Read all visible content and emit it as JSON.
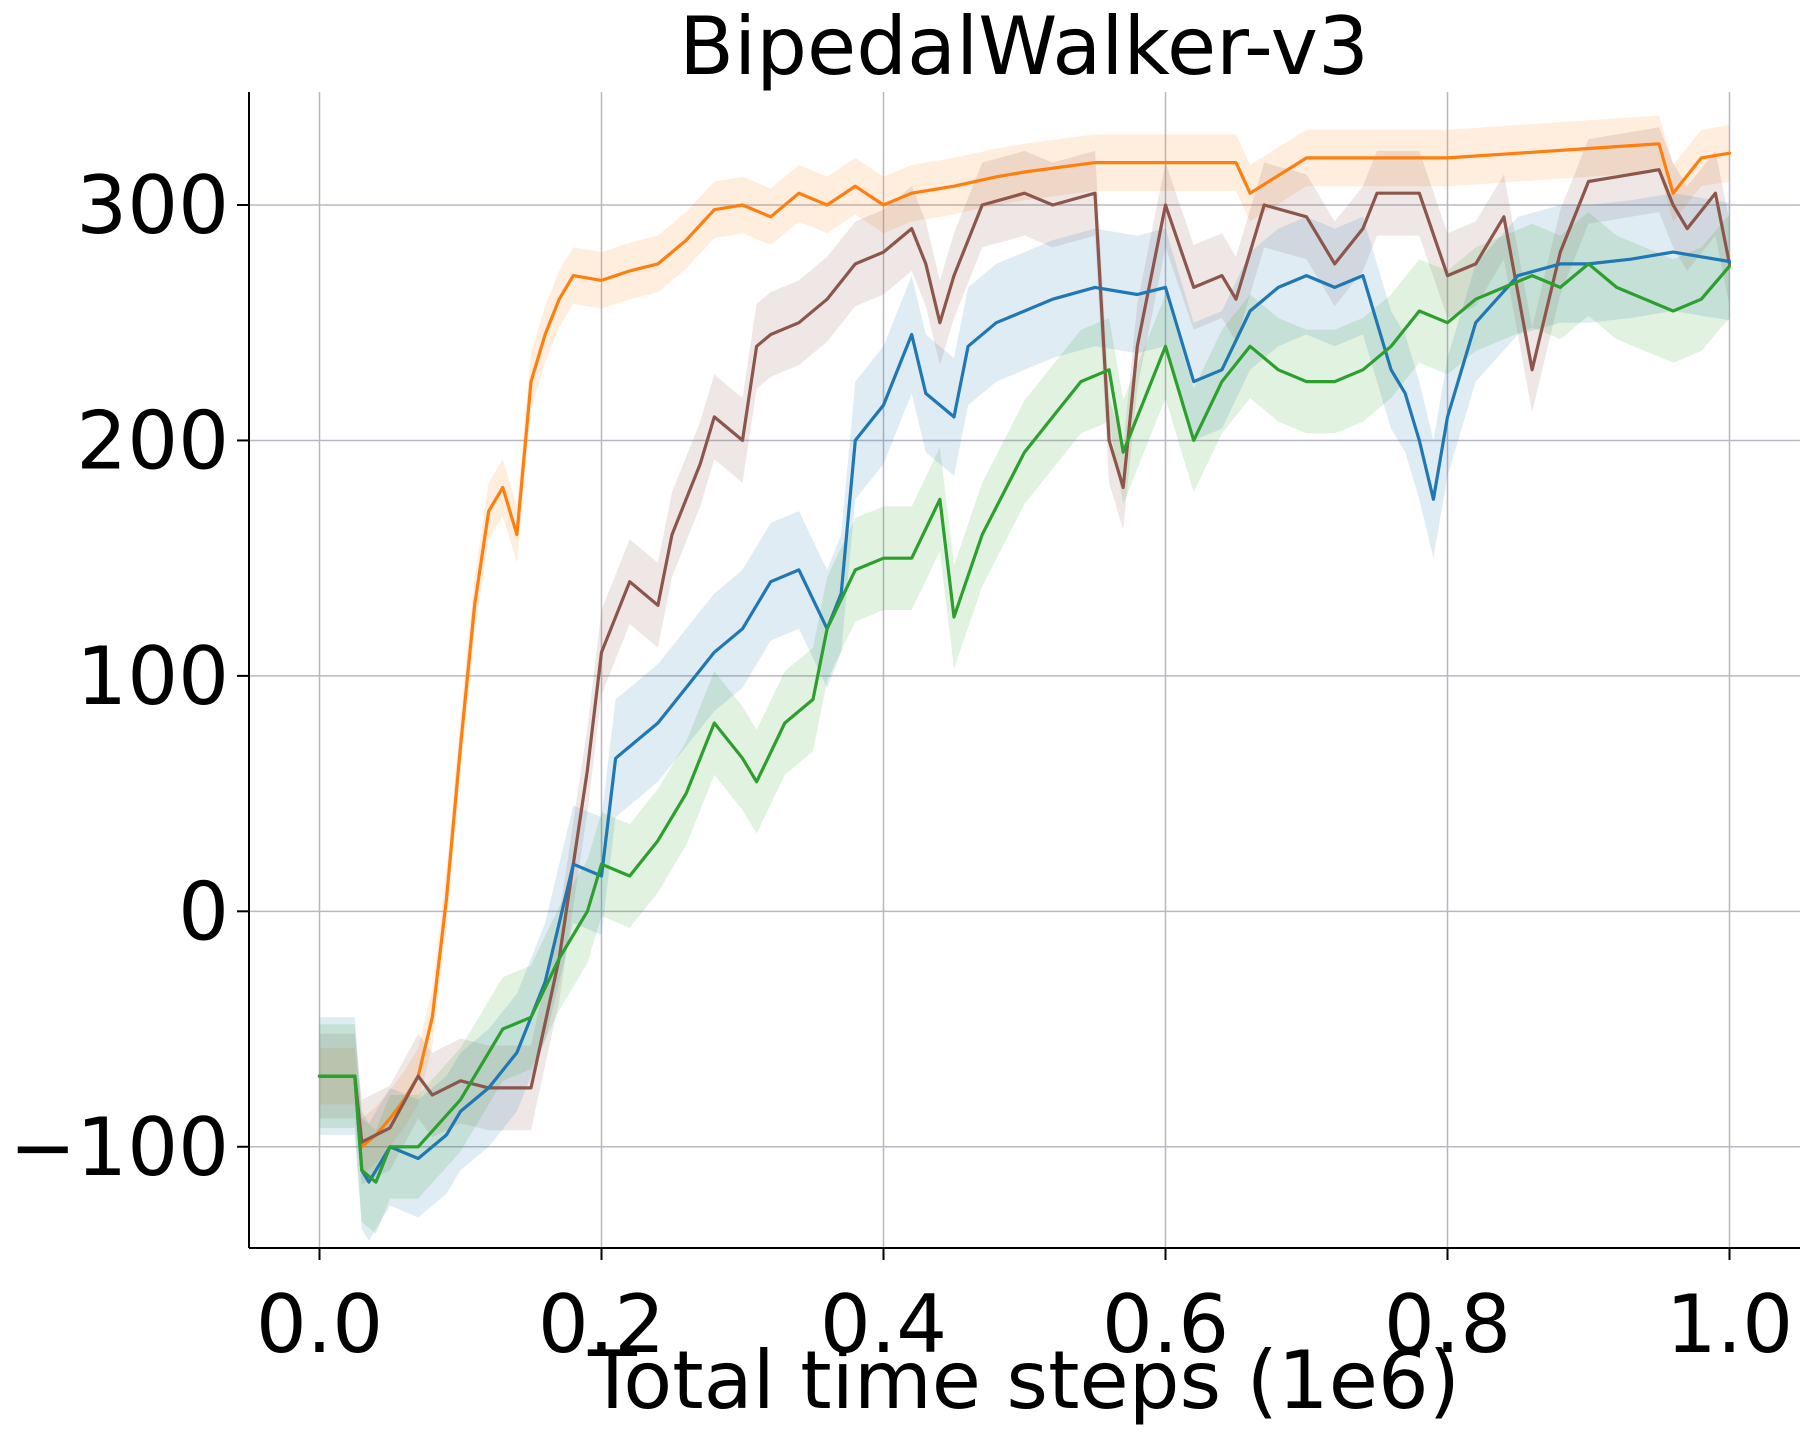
{
  "chart_data": {
    "type": "line",
    "title": "BipedalWalker-v3",
    "xlabel": "Total time steps (1e6)",
    "ylabel": "",
    "xlim": [
      -0.05,
      1.05
    ],
    "ylim": [
      -143,
      348
    ],
    "xticks": [
      0.0,
      0.2,
      0.4,
      0.6,
      0.8,
      1.0
    ],
    "xtick_labels": [
      "0.0",
      "0.2",
      "0.4",
      "0.6",
      "0.8",
      "1.0"
    ],
    "yticks": [
      -100,
      0,
      100,
      200,
      300
    ],
    "ytick_labels": [
      "−100",
      "0",
      "100",
      "200",
      "300"
    ],
    "grid": true,
    "legend": "none",
    "series": [
      {
        "name": "orange",
        "color": "#ff7f0e",
        "band": 12,
        "x": [
          0.0,
          0.025,
          0.03,
          0.04,
          0.05,
          0.06,
          0.07,
          0.08,
          0.09,
          0.1,
          0.11,
          0.12,
          0.13,
          0.14,
          0.15,
          0.16,
          0.17,
          0.18,
          0.2,
          0.22,
          0.24,
          0.26,
          0.28,
          0.3,
          0.32,
          0.34,
          0.36,
          0.38,
          0.4,
          0.42,
          0.45,
          0.48,
          0.5,
          0.55,
          0.6,
          0.65,
          0.66,
          0.7,
          0.75,
          0.8,
          0.85,
          0.9,
          0.95,
          0.96,
          0.98,
          1.0
        ],
        "y": [
          -70,
          -70,
          -100,
          -95,
          -88,
          -80,
          -70,
          -45,
          5,
          70,
          130,
          170,
          180,
          160,
          225,
          245,
          260,
          270,
          268,
          272,
          275,
          285,
          298,
          300,
          295,
          305,
          300,
          308,
          300,
          305,
          308,
          312,
          314,
          318,
          318,
          318,
          305,
          320,
          320,
          320,
          322,
          324,
          326,
          305,
          320,
          322
        ]
      },
      {
        "name": "brown",
        "color": "#8c564b",
        "band": 18,
        "x": [
          0.0,
          0.025,
          0.03,
          0.05,
          0.07,
          0.08,
          0.1,
          0.12,
          0.15,
          0.17,
          0.19,
          0.2,
          0.22,
          0.24,
          0.25,
          0.27,
          0.28,
          0.3,
          0.31,
          0.32,
          0.34,
          0.36,
          0.38,
          0.4,
          0.42,
          0.43,
          0.44,
          0.45,
          0.47,
          0.5,
          0.52,
          0.55,
          0.56,
          0.57,
          0.58,
          0.6,
          0.62,
          0.64,
          0.65,
          0.67,
          0.7,
          0.72,
          0.74,
          0.75,
          0.78,
          0.8,
          0.82,
          0.84,
          0.86,
          0.88,
          0.9,
          0.92,
          0.95,
          0.96,
          0.97,
          0.99,
          1.0
        ],
        "y": [
          -70,
          -70,
          -98,
          -92,
          -70,
          -78,
          -72,
          -75,
          -75,
          -20,
          60,
          110,
          140,
          130,
          160,
          190,
          210,
          200,
          240,
          245,
          250,
          260,
          275,
          280,
          290,
          275,
          250,
          270,
          300,
          305,
          300,
          305,
          200,
          180,
          240,
          300,
          265,
          270,
          260,
          300,
          295,
          275,
          290,
          305,
          305,
          270,
          275,
          295,
          230,
          280,
          310,
          312,
          315,
          300,
          290,
          305,
          275
        ]
      },
      {
        "name": "blue",
        "color": "#1f77b4",
        "band": 25,
        "x": [
          0.0,
          0.025,
          0.03,
          0.035,
          0.05,
          0.07,
          0.09,
          0.1,
          0.12,
          0.14,
          0.16,
          0.18,
          0.2,
          0.21,
          0.22,
          0.24,
          0.26,
          0.28,
          0.3,
          0.32,
          0.34,
          0.36,
          0.37,
          0.38,
          0.4,
          0.42,
          0.43,
          0.45,
          0.46,
          0.48,
          0.5,
          0.52,
          0.55,
          0.58,
          0.6,
          0.62,
          0.64,
          0.66,
          0.68,
          0.7,
          0.72,
          0.74,
          0.76,
          0.77,
          0.78,
          0.79,
          0.8,
          0.82,
          0.85,
          0.88,
          0.9,
          0.93,
          0.96,
          0.98,
          1.0
        ],
        "y": [
          -70,
          -70,
          -110,
          -115,
          -100,
          -105,
          -95,
          -85,
          -75,
          -60,
          -30,
          20,
          15,
          65,
          70,
          80,
          95,
          110,
          120,
          140,
          145,
          120,
          135,
          200,
          215,
          245,
          220,
          210,
          240,
          250,
          255,
          260,
          265,
          262,
          265,
          225,
          230,
          255,
          265,
          270,
          265,
          270,
          230,
          220,
          200,
          175,
          210,
          250,
          270,
          275,
          275,
          277,
          280,
          278,
          276
        ]
      },
      {
        "name": "green",
        "color": "#2ca02c",
        "band": 22,
        "x": [
          0.0,
          0.025,
          0.03,
          0.04,
          0.05,
          0.07,
          0.1,
          0.13,
          0.15,
          0.17,
          0.19,
          0.2,
          0.22,
          0.24,
          0.26,
          0.28,
          0.3,
          0.31,
          0.33,
          0.35,
          0.36,
          0.38,
          0.4,
          0.42,
          0.44,
          0.45,
          0.47,
          0.5,
          0.52,
          0.54,
          0.56,
          0.57,
          0.58,
          0.6,
          0.62,
          0.64,
          0.66,
          0.68,
          0.7,
          0.72,
          0.74,
          0.76,
          0.78,
          0.8,
          0.82,
          0.84,
          0.86,
          0.88,
          0.9,
          0.92,
          0.94,
          0.96,
          0.98,
          1.0
        ],
        "y": [
          -70,
          -70,
          -110,
          -115,
          -100,
          -100,
          -80,
          -50,
          -45,
          -20,
          0,
          20,
          15,
          30,
          50,
          80,
          65,
          55,
          80,
          90,
          120,
          145,
          150,
          150,
          175,
          125,
          160,
          195,
          210,
          225,
          230,
          195,
          210,
          240,
          200,
          225,
          240,
          230,
          225,
          225,
          230,
          240,
          255,
          250,
          260,
          265,
          270,
          265,
          275,
          265,
          260,
          255,
          260,
          274
        ]
      }
    ]
  }
}
